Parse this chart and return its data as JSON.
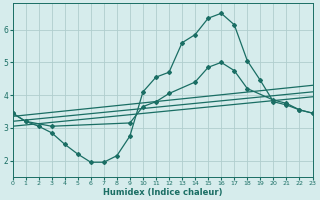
{
  "xlabel": "Humidex (Indice chaleur)",
  "bg_color": "#d6ecec",
  "grid_color": "#b0cece",
  "line_color": "#1a6e64",
  "xlim": [
    0,
    23
  ],
  "ylim": [
    1.5,
    6.8
  ],
  "yticks": [
    2,
    3,
    4,
    5,
    6
  ],
  "xticks": [
    0,
    1,
    2,
    3,
    4,
    5,
    6,
    7,
    8,
    9,
    10,
    11,
    12,
    13,
    14,
    15,
    16,
    17,
    18,
    19,
    20,
    21,
    22,
    23
  ],
  "series1_x": [
    0,
    1,
    2,
    3,
    4,
    5,
    6,
    7,
    8,
    9,
    10,
    11,
    12,
    13,
    14,
    15,
    16,
    17,
    18,
    19,
    20,
    21,
    22,
    23
  ],
  "series1_y": [
    3.45,
    3.2,
    3.05,
    2.85,
    2.5,
    2.2,
    1.95,
    1.95,
    2.15,
    2.75,
    4.1,
    4.55,
    4.7,
    5.6,
    5.85,
    6.35,
    6.5,
    6.15,
    5.05,
    4.45,
    3.8,
    3.7,
    3.55,
    3.45
  ],
  "series2_x": [
    0,
    1,
    3,
    9,
    10,
    11,
    12,
    14,
    15,
    16,
    17,
    18,
    20,
    21,
    22,
    23
  ],
  "series2_y": [
    3.45,
    3.2,
    3.05,
    3.15,
    3.65,
    3.8,
    4.05,
    4.4,
    4.85,
    5.0,
    4.75,
    4.2,
    3.85,
    3.75,
    3.55,
    3.45
  ],
  "line1_x": [
    0,
    23
  ],
  "line1_y": [
    3.05,
    3.95
  ],
  "line2_x": [
    0,
    23
  ],
  "line2_y": [
    3.2,
    4.1
  ],
  "line3_x": [
    0,
    23
  ],
  "line3_y": [
    3.35,
    4.3
  ]
}
